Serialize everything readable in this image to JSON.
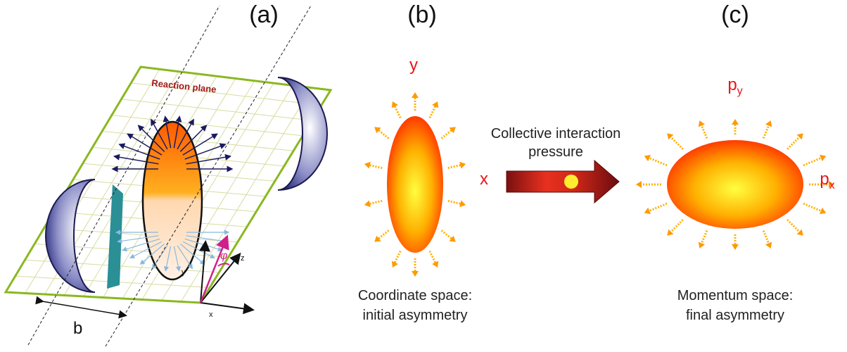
{
  "panels": {
    "a": {
      "label": "(a)",
      "plane": "Reaction plane",
      "impact": "b",
      "axis_y": "y",
      "axis_z": "z",
      "axis_x": "x",
      "angle": "φ"
    },
    "b": {
      "label": "(b)",
      "axis_y": "y",
      "axis_x": "x",
      "caption": [
        "Coordinate space:",
        "initial asymmetry"
      ]
    },
    "arrow": {
      "caption": [
        "Collective interaction",
        "pressure"
      ]
    },
    "c": {
      "label": "(c)",
      "axis_y": {
        "base": "p",
        "sub": "y"
      },
      "axis_x": {
        "base": "p",
        "sub": "x"
      },
      "caption": [
        "Momentum space:",
        "final asymmetry"
      ]
    }
  }
}
